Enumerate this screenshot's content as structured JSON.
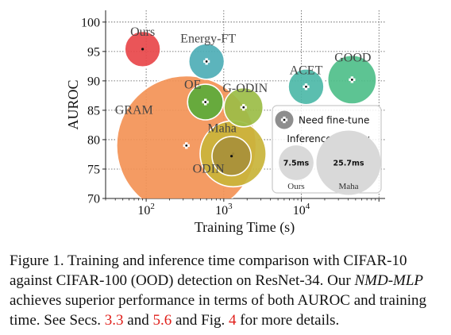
{
  "chart_data": {
    "type": "scatter",
    "xlabel": "Training Time (s)",
    "ylabel": "AUROC",
    "xscale": "log",
    "xlim": [
      30,
      120000
    ],
    "ylim": [
      70,
      102
    ],
    "x_ticks": [
      {
        "value": 100,
        "base": "10",
        "exp": "2"
      },
      {
        "value": 1000,
        "base": "10",
        "exp": "3"
      },
      {
        "value": 10000,
        "base": "10",
        "exp": "4"
      }
    ],
    "y_ticks": [
      "70",
      "75",
      "80",
      "85",
      "90",
      "95",
      "100"
    ],
    "grid": true,
    "points": [
      {
        "name": "Ours",
        "x": 90,
        "y": 95.4,
        "latency_ms": 7.5,
        "fine_tune": false,
        "color": "#e8474a"
      },
      {
        "name": "Energy-FT",
        "x": 600,
        "y": 93.3,
        "latency_ms": 7.5,
        "fine_tune": true,
        "color": "#4eaeb6"
      },
      {
        "name": "ACET",
        "x": 11500,
        "y": 89.0,
        "latency_ms": 7.5,
        "fine_tune": true,
        "color": "#4db8a8"
      },
      {
        "name": "GOOD",
        "x": 45000,
        "y": 90.2,
        "latency_ms": 14.0,
        "fine_tune": true,
        "color": "#4fbf8a"
      },
      {
        "name": "OE",
        "x": 580,
        "y": 86.4,
        "latency_ms": 7.5,
        "fine_tune": true,
        "color": "#5aab3a"
      },
      {
        "name": "G-ODIN",
        "x": 1800,
        "y": 85.5,
        "latency_ms": 9.0,
        "fine_tune": true,
        "color": "#9bbd47"
      },
      {
        "name": "GRAM",
        "x": 330,
        "y": 79.0,
        "latency_ms": 115.0,
        "fine_tune": true,
        "color": "#f39256"
      },
      {
        "name": "Maha",
        "x": 1320,
        "y": 77.6,
        "latency_ms": 25.7,
        "fine_tune": false,
        "color": "#c9b43a"
      },
      {
        "name": "ODIN",
        "x": 1260,
        "y": 77.2,
        "latency_ms": 9.0,
        "fine_tune": false,
        "color": "#a8903a"
      }
    ],
    "legend": {
      "position": "lower-right",
      "fine_tune_label": "Need fine-tune",
      "latency_title": "Inference latency",
      "samples": [
        {
          "value_label": "7.5ms",
          "name": "Ours"
        },
        {
          "value_label": "25.7ms",
          "name": "Maha"
        }
      ]
    }
  },
  "caption": {
    "p1": "Figure 1. Training and inference time comparison with CIFAR-10 against CIFAR-100 (OOD) detection on ResNet-34. Our ",
    "em": "NMD-MLP",
    "p2": " achieves superior performance in terms of both AUROC and training time. See Secs. ",
    "ref1": "3.3",
    "and1": " and ",
    "ref2": "5.6",
    "p3": " and Fig. ",
    "ref3": "4",
    "p4": " for more details."
  }
}
